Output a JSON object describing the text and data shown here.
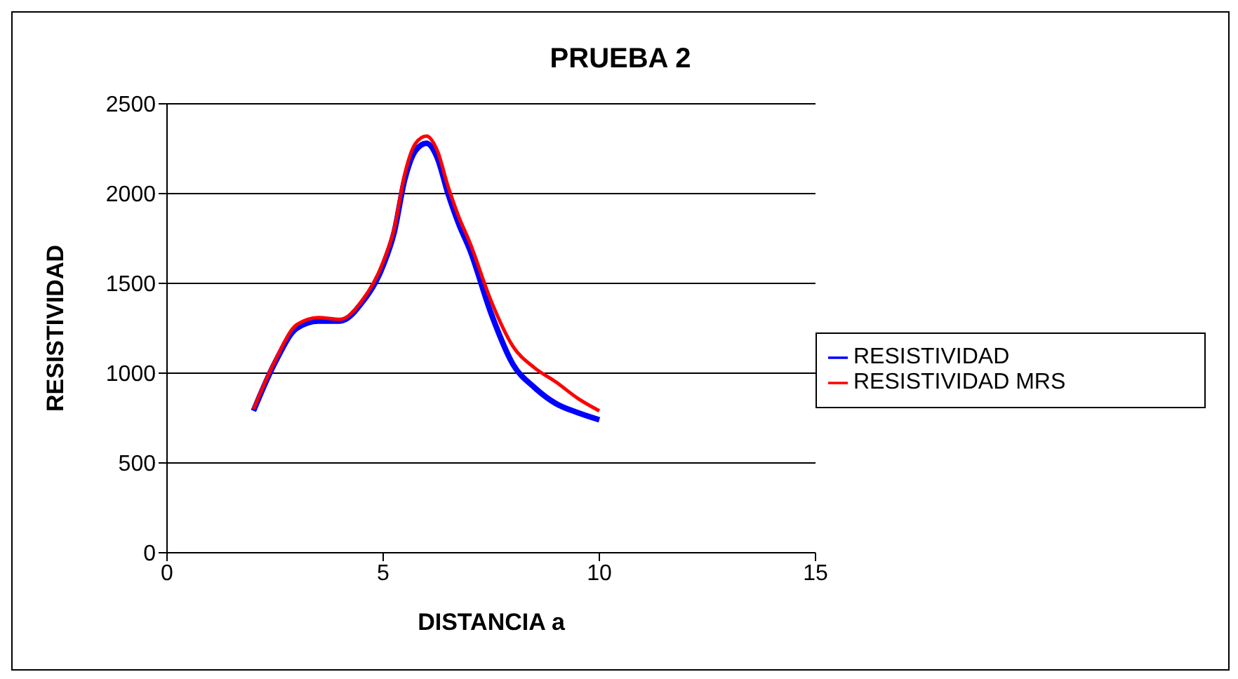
{
  "chart_data": {
    "type": "line",
    "title": "PRUEBA 2",
    "xlabel": "DISTANCIA a",
    "ylabel": "RESISTIVIDAD",
    "x": [
      2,
      2.5,
      3,
      3.5,
      4,
      4.5,
      5,
      5.25,
      5.5,
      5.75,
      6,
      6.25,
      6.5,
      6.75,
      7,
      7.5,
      8,
      8.5,
      9,
      9.5,
      10
    ],
    "series": [
      {
        "name": "RESISTIVIDAD",
        "color": "#0000ff",
        "values": [
          790,
          1060,
          1250,
          1290,
          1290,
          1390,
          1600,
          1780,
          2080,
          2240,
          2280,
          2200,
          2000,
          1830,
          1690,
          1330,
          1050,
          920,
          830,
          780,
          740
        ]
      },
      {
        "name": "RESISTIVIDAD MRS",
        "color": "#ff0000",
        "values": [
          800,
          1070,
          1270,
          1310,
          1300,
          1400,
          1620,
          1800,
          2110,
          2280,
          2320,
          2240,
          2040,
          1870,
          1730,
          1400,
          1150,
          1030,
          950,
          860,
          790
        ]
      }
    ],
    "xlim": [
      0,
      15
    ],
    "xticks": [
      0,
      5,
      10,
      15
    ],
    "ylim": [
      0,
      2500
    ],
    "yticks": [
      0,
      500,
      1000,
      1500,
      2000,
      2500
    ],
    "grid": "y",
    "legend": "right",
    "marker": "none",
    "line_style": "solid"
  }
}
